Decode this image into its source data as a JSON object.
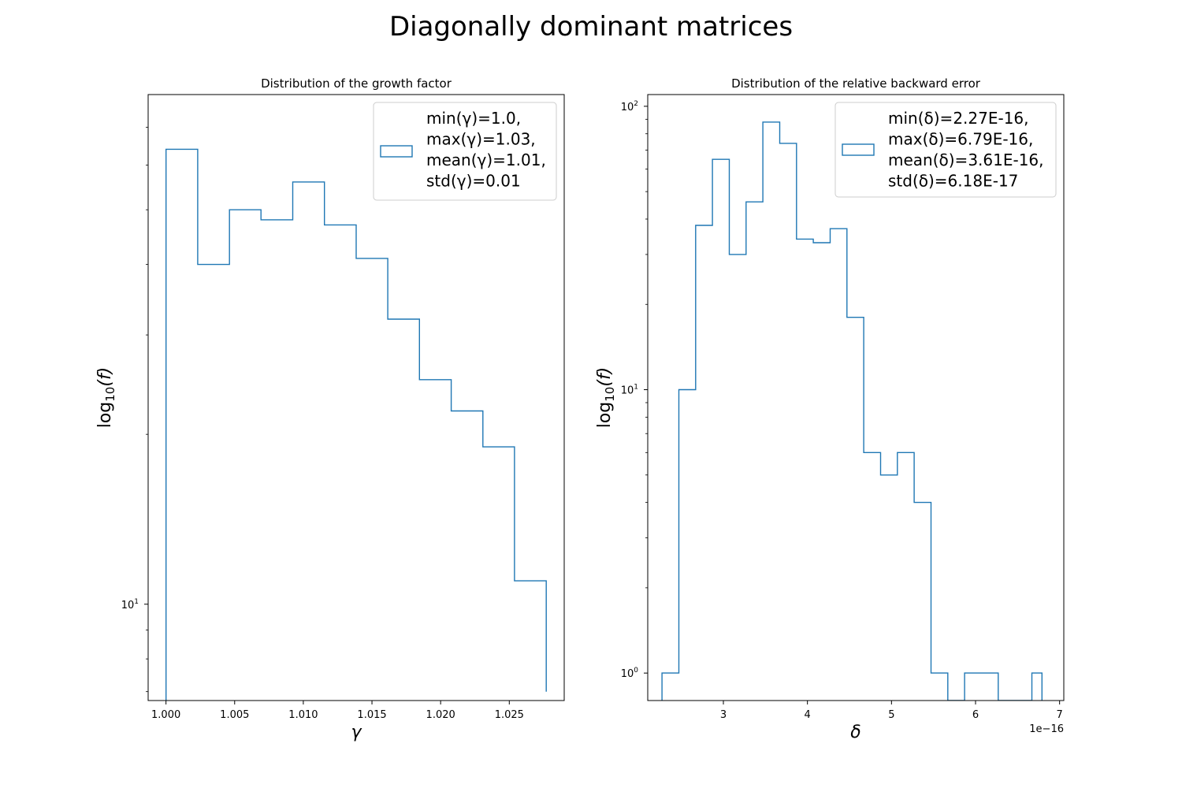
{
  "suptitle": "Diagonally dominant matrices",
  "chart_data": [
    {
      "type": "histogram",
      "title": "Distribution of the growth factor",
      "xlabel": "γ",
      "ylabel": "log",
      "ylabel_sub": "10",
      "ylabel_arg": "(f)",
      "yscale": "log",
      "xlim": [
        0.9987,
        1.029
      ],
      "ylim": [
        6.75,
        80
      ],
      "bin_edges": [
        1.0,
        1.00231,
        1.00462,
        1.00692,
        1.00923,
        1.01154,
        1.01385,
        1.01615,
        1.01846,
        1.02077,
        1.02308,
        1.02538,
        1.02769
      ],
      "counts": [
        64,
        40,
        50,
        48,
        56,
        47,
        41,
        32,
        25,
        22,
        19,
        11,
        7
      ],
      "xticks": [
        {
          "value": 1.0,
          "label": "1.000"
        },
        {
          "value": 1.005,
          "label": "1.005"
        },
        {
          "value": 1.01,
          "label": "1.010"
        },
        {
          "value": 1.015,
          "label": "1.015"
        },
        {
          "value": 1.02,
          "label": "1.020"
        },
        {
          "value": 1.025,
          "label": "1.025"
        }
      ],
      "yticks_major": [
        {
          "value": 10,
          "base": "10",
          "exp": "1"
        }
      ],
      "yticks_minor": [
        7,
        8,
        9,
        20,
        30,
        40,
        50,
        60,
        70
      ],
      "xscale_offset": "",
      "legend": {
        "position": "upper right",
        "lines": [
          "min(γ)=1.0,",
          "max(γ)=1.03,",
          "mean(γ)=1.01,",
          "std(γ)=0.01"
        ]
      },
      "color": "#1f77b4"
    },
    {
      "type": "histogram",
      "title": "Distribution of the relative backward error",
      "xlabel": "δ",
      "ylabel": "log",
      "ylabel_sub": "10",
      "ylabel_arg": "(f)",
      "yscale": "log",
      "xlim": [
        2.1,
        7.05
      ],
      "ylim": [
        0.8,
        110
      ],
      "bin_edges": [
        2.27,
        2.47,
        2.67,
        2.87,
        3.07,
        3.27,
        3.47,
        3.67,
        3.87,
        4.07,
        4.27,
        4.47,
        4.67,
        4.87,
        5.07,
        5.27,
        5.47,
        5.67,
        5.87,
        6.07,
        6.27,
        6.47,
        6.67,
        6.79
      ],
      "counts": [
        1,
        10,
        38,
        65,
        30,
        46,
        88,
        74,
        34,
        33,
        37,
        18,
        6,
        5,
        6,
        4,
        1,
        0,
        1,
        1,
        0,
        0,
        1
      ],
      "xticks": [
        {
          "value": 3,
          "label": "3"
        },
        {
          "value": 4,
          "label": "4"
        },
        {
          "value": 5,
          "label": "5"
        },
        {
          "value": 6,
          "label": "6"
        },
        {
          "value": 7,
          "label": "7"
        }
      ],
      "yticks_major": [
        {
          "value": 1,
          "base": "10",
          "exp": "0"
        },
        {
          "value": 10,
          "base": "10",
          "exp": "1"
        },
        {
          "value": 100,
          "base": "10",
          "exp": "2"
        }
      ],
      "yticks_minor": [
        2,
        3,
        4,
        5,
        6,
        7,
        8,
        9,
        20,
        30,
        40,
        50,
        60,
        70,
        80,
        90
      ],
      "xscale_offset": "1e−16",
      "legend": {
        "position": "upper right",
        "lines": [
          "min(δ)=2.27E-16,",
          "max(δ)=6.79E-16,",
          "mean(δ)=3.61E-16,",
          "std(δ)=6.18E-17"
        ]
      },
      "color": "#1f77b4"
    }
  ]
}
